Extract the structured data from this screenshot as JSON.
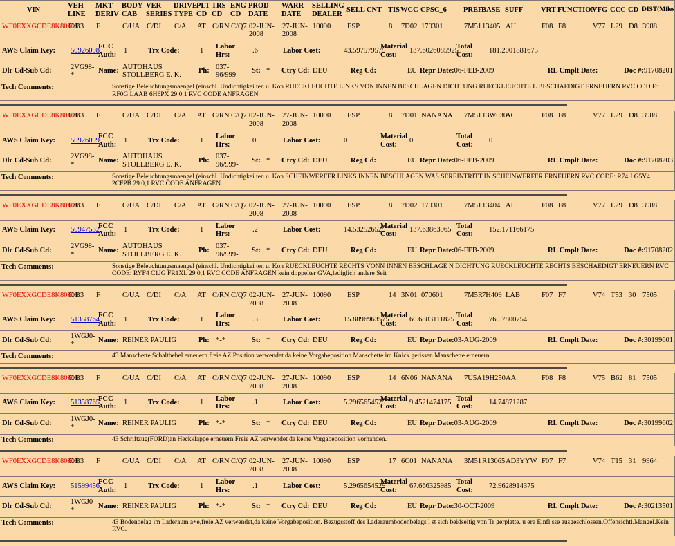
{
  "colors": {
    "background": "#FCD9A8",
    "vin_text": "#e80000",
    "link": "#0000cc",
    "divider": "#4a4a4a",
    "row_border": "#7a7a7a"
  },
  "header": {
    "columns": [
      "VIN",
      "VEH LINE",
      "MKT DERIV",
      "BODY CAB",
      "VER SERIES",
      "DRIVE TYPE",
      "PLT CD",
      "TRS CD",
      "ENG CD",
      "PROD DATE",
      "WARR DATE",
      "SELLING DEALER",
      "SELL CNT",
      "TIS",
      "WCC",
      "CPSC_6",
      "PREF",
      "BASE",
      "SUFF",
      "VRT",
      "FUNCTION",
      "VFG",
      "CCC",
      "CD",
      "DIST(Miles)"
    ]
  },
  "labels": {
    "aws_claim_key": "AWS Claim Key:",
    "fcc_auth": "FCC Auth:",
    "trx_code": "Trx Code:",
    "labor_hrs": "Labor Hrs:",
    "labor_cost": "Labor Cost:",
    "material_cost": "Material Cost:",
    "total_cost": "Total Cost:",
    "dlr_cd_sub_cd": "Dlr Cd-Sub Cd:",
    "name": "Name:",
    "ph": "Ph:",
    "st": "St:",
    "ctry_cd": "Ctry Cd:",
    "reg_cd": "Reg Cd:",
    "repr_date": "Repr Date:",
    "rl_cmplt_date": "RL Cmplt Date:",
    "doc": "Doc #:",
    "tech_comments": "Tech Comments:"
  },
  "records": [
    {
      "vin": "WF0EXXGCDE8K80608",
      "veh_line": "C/B3",
      "mkt_deriv": "F",
      "body_cab": "C/UA",
      "ver_series": "C/DI",
      "drive_type": "C/A",
      "plt_cd": "AT",
      "trs_cd": "C/RN",
      "eng_cd": "C/Q7",
      "prod_date": "02-JUN-2008",
      "warr_date": "27-JUN-2008",
      "selling_dealer": "10090",
      "sell_cnt": "ESP",
      "tis": "8",
      "wcc": "7D02",
      "cpsc_6": "170301",
      "pref": "7M51",
      "base": "13405",
      "suff": "AH",
      "vrt": "F08",
      "function": "F8",
      "vfg": "V77",
      "ccc": "L29",
      "cd": "D8",
      "dist": "3988",
      "claim_key": "50926098",
      "fcc_auth": "1",
      "trx_code": "1",
      "labor_hrs": ".6",
      "labor_cost": "43.597579575",
      "material_cost": "137.6026085925",
      "total_cost": "181.2001881675",
      "dlr_cd": "2VG98-*",
      "name": "AUTOHAUS STOLLBERG E. K.",
      "ph": "037-96/999-",
      "st": "*",
      "ctry_cd": "DEU",
      "reg_cd": "EU",
      "repr_date": "06-FEB-2009",
      "rl_cmplt_date": "",
      "doc_num": "91708201",
      "tech_comments": "Sonstige Beleuchtungsmaengel (einschl. Undichtigkei ten u. Kon RUECKLEUCHTE LINKS VON INNEN BESCHLAGEN DICHTUNG RUECKLEUCHTE L BESCHAEDIGT ERNEUERN RVC COD E: RF0G LAAB 6H6PX 29 0,1 RVC CODE ANFRAGEN"
    },
    {
      "vin": "WF0EXXGCDE8K80608",
      "veh_line": "C/B3",
      "mkt_deriv": "F",
      "body_cab": "C/UA",
      "ver_series": "C/DI",
      "drive_type": "C/A",
      "plt_cd": "AT",
      "trs_cd": "C/RN",
      "eng_cd": "C/Q7",
      "prod_date": "02-JUN-2008",
      "warr_date": "27-JUN-2008",
      "selling_dealer": "10090",
      "sell_cnt": "ESP",
      "tis": "8",
      "wcc": "7D01",
      "cpsc_6": "NANANA",
      "pref": "7M51",
      "base": "13W030",
      "suff": "AC",
      "vrt": "F08",
      "function": "F8",
      "vfg": "V77",
      "ccc": "L29",
      "cd": "D8",
      "dist": "3988",
      "claim_key": "50926099",
      "fcc_auth": "1",
      "trx_code": "1",
      "labor_hrs": "0",
      "labor_cost": "0",
      "material_cost": "0",
      "total_cost": "0",
      "dlr_cd": "2VG98-*",
      "name": "AUTOHAUS STOLLBERG E. K.",
      "ph": "037-96/999-",
      "st": "*",
      "ctry_cd": "DEU",
      "reg_cd": "EU",
      "repr_date": "06-FEB-2009",
      "rl_cmplt_date": "",
      "doc_num": "91708203",
      "tech_comments": "Sonstige Beleuchtungsmaengel (einschl. Undichtigkei ten u. Kon SCHEINWERFER LINKS INNEN BESCHLAGEN WAS SEREINTRITT IN SCHEINWERFER ERNEUERN RVC CODE: R74 J G5Y4 2CFPB 29 0,1 RVC CODE ANFRAGEN"
    },
    {
      "vin": "WF0EXXGCDE8K80608",
      "veh_line": "C/B3",
      "mkt_deriv": "F",
      "body_cab": "C/UA",
      "ver_series": "C/DI",
      "drive_type": "C/A",
      "plt_cd": "AT",
      "trs_cd": "C/RN",
      "eng_cd": "C/Q7",
      "prod_date": "02-JUN-2008",
      "warr_date": "27-JUN-2008",
      "selling_dealer": "10090",
      "sell_cnt": "ESP",
      "tis": "8",
      "wcc": "7D02",
      "cpsc_6": "170301",
      "pref": "7M51",
      "base": "13404",
      "suff": "AH",
      "vrt": "F08",
      "function": "F8",
      "vfg": "V77",
      "ccc": "L29",
      "cd": "D8",
      "dist": "3988",
      "claim_key": "50947532",
      "fcc_auth": "1",
      "trx_code": "1",
      "labor_hrs": ".2",
      "labor_cost": "14.532526525",
      "material_cost": "137.63863965",
      "total_cost": "152.171166175",
      "dlr_cd": "2VG98-*",
      "name": "AUTOHAUS STOLLBERG E. K.",
      "ph": "037-96/999-",
      "st": "*",
      "ctry_cd": "DEU",
      "reg_cd": "EU",
      "repr_date": "06-FEB-2009",
      "rl_cmplt_date": "",
      "doc_num": "91708202",
      "tech_comments": "Sonstige Beleuchtungsmaengel (einschl. Undichtigkei ten u. Kon RUECKLEUCHTE RECHTS VONN INNEN BESCHLAGE N DICHTUNG RUECKLEUCHTE RECHTS BESCHAEDIGT ERNEUERN RVC CODE: RYF4 C1JG FR1XL 29 0,1 RVC CODE ANFRAGEN kein doppelter GVA,lediglich andere Seit"
    },
    {
      "vin": "WF0EXXGCDE8K80608",
      "veh_line": "C/B3",
      "mkt_deriv": "F",
      "body_cab": "C/UA",
      "ver_series": "C/DI",
      "drive_type": "C/A",
      "plt_cd": "AT",
      "trs_cd": "C/RN",
      "eng_cd": "C/Q7",
      "prod_date": "02-JUN-2008",
      "warr_date": "27-JUN-2008",
      "selling_dealer": "10090",
      "sell_cnt": "ESP",
      "tis": "14",
      "wcc": "3N01",
      "cpsc_6": "070601",
      "pref": "7M5R",
      "base": "7H409",
      "suff": "LAB",
      "vrt": "F07",
      "function": "F7",
      "vfg": "V74",
      "ccc": "T53",
      "cd": "30",
      "dist": "7505",
      "claim_key": "51358764",
      "fcc_auth": "1",
      "trx_code": "1",
      "labor_hrs": ".3",
      "labor_cost": "15.8896963575",
      "material_cost": "60.6883111825",
      "total_cost": "76.57800754",
      "dlr_cd": "1WGJ0-*",
      "name": "REINER PAULIG",
      "ph": "*-*",
      "st": "*",
      "ctry_cd": "DEU",
      "reg_cd": "EU",
      "repr_date": "03-AUG-2009",
      "rl_cmplt_date": "",
      "doc_num": "30199601",
      "tech_comments": "43 Manschette Schalthebel erneuern.freie AZ Position verwendet da keine Vorgabeposition.Manschette im Knick gerissen.Manschette erneuern."
    },
    {
      "vin": "WF0EXXGCDE8K80608",
      "veh_line": "C/B3",
      "mkt_deriv": "F",
      "body_cab": "C/UA",
      "ver_series": "C/DI",
      "drive_type": "C/A",
      "plt_cd": "AT",
      "trs_cd": "C/RN",
      "eng_cd": "C/Q7",
      "prod_date": "02-JUN-2008",
      "warr_date": "27-JUN-2008",
      "selling_dealer": "10090",
      "sell_cnt": "ESP",
      "tis": "14",
      "wcc": "6N06",
      "cpsc_6": "NANANA",
      "pref": "7U5A",
      "base": "19H250",
      "suff": "AA",
      "vrt": "F08",
      "function": "F8",
      "vfg": "V75",
      "ccc": "B62",
      "cd": "81",
      "dist": "7505",
      "claim_key": "51358765",
      "fcc_auth": "1",
      "trx_code": "1",
      "labor_hrs": ".1",
      "labor_cost": "5.2965654525",
      "material_cost": "9.4521474175",
      "total_cost": "14.74871287",
      "dlr_cd": "1WGJ0-*",
      "name": "REINER PAULIG",
      "ph": "*-*",
      "st": "*",
      "ctry_cd": "DEU",
      "reg_cd": "EU",
      "repr_date": "03-AUG-2009",
      "rl_cmplt_date": "",
      "doc_num": "30199602",
      "tech_comments": "43 Schriftzug(FORD)an Heckklappe erneuern.Freie AZ verwendet da keine Vorgabeposition vorhanden."
    },
    {
      "vin": "WF0EXXGCDE8K80608",
      "veh_line": "C/B3",
      "mkt_deriv": "F",
      "body_cab": "C/UA",
      "ver_series": "C/DI",
      "drive_type": "C/A",
      "plt_cd": "AT",
      "trs_cd": "C/RN",
      "eng_cd": "C/Q7",
      "prod_date": "02-JUN-2008",
      "warr_date": "27-JUN-2008",
      "selling_dealer": "10090",
      "sell_cnt": "ESP",
      "tis": "17",
      "wcc": "6C01",
      "cpsc_6": "NANANA",
      "pref": "3M51",
      "base": "R13065",
      "suff": "AD3YYW",
      "vrt": "F07",
      "function": "F7",
      "vfg": "V74",
      "ccc": "T15",
      "cd": "31",
      "dist": "9964",
      "claim_key": "51599456",
      "fcc_auth": "1",
      "trx_code": "1",
      "labor_hrs": ".1",
      "labor_cost": "5.2965654525",
      "material_cost": "67.666325985",
      "total_cost": "72.9628914375",
      "dlr_cd": "1WGJ0-*",
      "name": "REINER PAULIG",
      "ph": "*-*",
      "st": "*",
      "ctry_cd": "DEU",
      "reg_cd": "EU",
      "repr_date": "30-OCT-2009",
      "rl_cmplt_date": "",
      "doc_num": "30213501",
      "tech_comments": "43 Bodenbelag im Laderaum a+e,freie AZ verwendet,da keine Vorgabeposition. Bezugsstoff des Laderaumbodenbelags l st sich beidseitig von Tr gerplatte. u ere Einfl sse ausgeschlossen.Offensichtl.Mangel.Kein RVC."
    }
  ]
}
